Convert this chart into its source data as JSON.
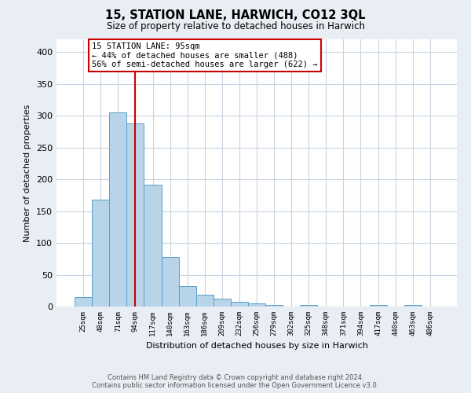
{
  "title": "15, STATION LANE, HARWICH, CO12 3QL",
  "subtitle": "Size of property relative to detached houses in Harwich",
  "xlabel": "Distribution of detached houses by size in Harwich",
  "ylabel": "Number of detached properties",
  "bar_labels": [
    "25sqm",
    "48sqm",
    "71sqm",
    "94sqm",
    "117sqm",
    "140sqm",
    "163sqm",
    "186sqm",
    "209sqm",
    "232sqm",
    "256sqm",
    "279sqm",
    "302sqm",
    "325sqm",
    "348sqm",
    "371sqm",
    "394sqm",
    "417sqm",
    "440sqm",
    "463sqm",
    "486sqm"
  ],
  "bar_values": [
    15,
    168,
    305,
    288,
    192,
    78,
    32,
    19,
    12,
    8,
    5,
    2,
    0,
    3,
    0,
    0,
    0,
    2,
    0,
    2,
    0
  ],
  "bar_color": "#b8d4e8",
  "bar_edge_color": "#5a9fc8",
  "marker_line_color": "#cc0000",
  "marker_bin_index": 3,
  "annotation_text": "15 STATION LANE: 95sqm\n← 44% of detached houses are smaller (488)\n56% of semi-detached houses are larger (622) →",
  "annotation_box_color": "#ffffff",
  "annotation_box_edge": "#cc0000",
  "ylim": [
    0,
    420
  ],
  "yticks": [
    0,
    50,
    100,
    150,
    200,
    250,
    300,
    350,
    400
  ],
  "footer_line1": "Contains HM Land Registry data © Crown copyright and database right 2024.",
  "footer_line2": "Contains public sector information licensed under the Open Government Licence v3.0.",
  "background_color": "#e8eef4",
  "plot_background": "#ffffff",
  "grid_color": "#c8d4e0"
}
